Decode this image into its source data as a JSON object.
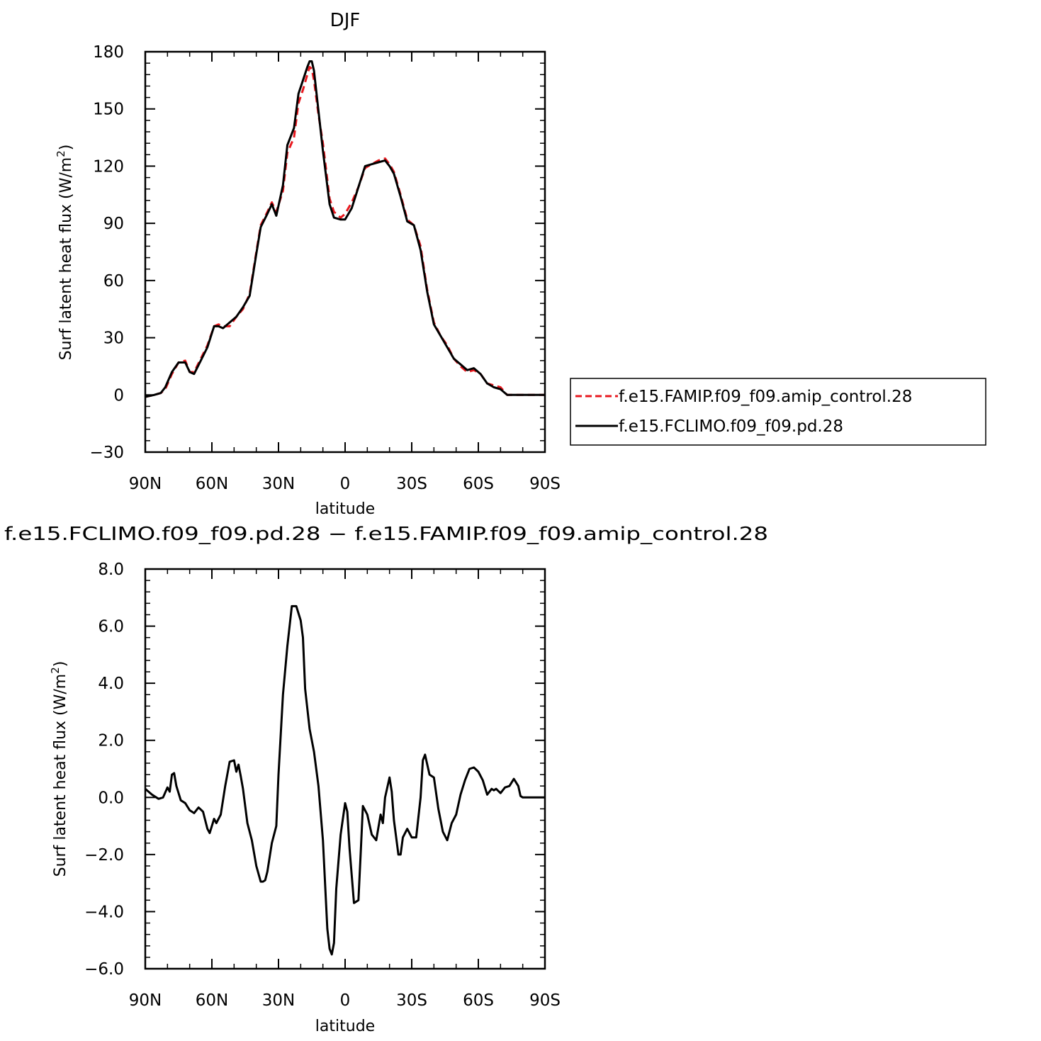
{
  "colors": {
    "amip": "#e8191f",
    "climo": "#000000",
    "axis": "#000000"
  },
  "chart_data": [
    {
      "type": "line",
      "title": "DJF",
      "xlabel": "latitude",
      "ylabel": "Surf latent heat flux (W/m",
      "ylabel_sup": "2",
      "ylabel_close": ")",
      "xlim": [
        90,
        -90
      ],
      "ylim": [
        -30,
        180
      ],
      "xticks": [
        90,
        60,
        30,
        0,
        -30,
        -60,
        -90
      ],
      "xtick_labels": [
        "90N",
        "60N",
        "30N",
        "0",
        "30S",
        "60S",
        "90S"
      ],
      "yticks": [
        -30,
        0,
        30,
        60,
        90,
        120,
        150,
        180
      ],
      "ytick_labels": [
        "−30",
        "0",
        "30",
        "60",
        "90",
        "120",
        "150",
        "180"
      ],
      "legend": {
        "placement": "right",
        "entries": [
          "f.e15.FAMIP.f09_f09.amip_control.28",
          "f.e15.FCLIMO.f09_f09.pd.28"
        ]
      },
      "series": [
        {
          "name": "f.e15.FAMIP.f09_f09.amip_control.28",
          "color": "#e8191f",
          "dash": "dashed",
          "x": [
            90,
            86,
            83,
            81,
            78,
            75,
            72,
            70,
            68,
            65,
            62,
            59,
            57,
            55,
            52,
            49,
            46,
            43,
            40,
            38,
            35,
            33,
            31,
            28,
            26,
            23,
            21,
            19,
            17,
            16,
            15,
            14,
            12,
            10,
            7,
            5,
            2,
            0,
            -3,
            -6,
            -9,
            -12,
            -15,
            -18,
            -20,
            -22,
            -25,
            -28,
            -31,
            -34,
            -37,
            -40,
            -43,
            -46,
            -49,
            -52,
            -55,
            -58,
            -61,
            -64,
            -67,
            -70,
            -73,
            -76,
            -78,
            -80,
            -84,
            -87,
            -90
          ],
          "values": [
            -1,
            0,
            1,
            3,
            11,
            17,
            18,
            12,
            12,
            19,
            26,
            36,
            37,
            36,
            36,
            41,
            45,
            53,
            75,
            89,
            96,
            101,
            96,
            107,
            127,
            135,
            153,
            160,
            168,
            172,
            171,
            165,
            147,
            132,
            103,
            96,
            93,
            95,
            101,
            109,
            119,
            121,
            123,
            124,
            121,
            117,
            105,
            92,
            89,
            78,
            55,
            38,
            31,
            26,
            19,
            15,
            12,
            13,
            11,
            6,
            5,
            4,
            0,
            0,
            0,
            0,
            0,
            0,
            0
          ]
        },
        {
          "name": "f.e15.FCLIMO.f09_f09.pd.28",
          "color": "#000000",
          "dash": "solid",
          "x": [
            90,
            86,
            83,
            81,
            78,
            75,
            72,
            70,
            68,
            65,
            62,
            59,
            57,
            55,
            52,
            49,
            46,
            43,
            40,
            38,
            35,
            33,
            31,
            28,
            26,
            23,
            21,
            19,
            17,
            16,
            15,
            14,
            12,
            10,
            7,
            5,
            2,
            0,
            -3,
            -6,
            -9,
            -12,
            -15,
            -18,
            -20,
            -22,
            -25,
            -28,
            -31,
            -34,
            -37,
            -40,
            -43,
            -46,
            -49,
            -52,
            -55,
            -58,
            -61,
            -64,
            -67,
            -70,
            -73,
            -76,
            -78,
            -80,
            -84,
            -87,
            -90
          ],
          "values": [
            -1,
            0,
            1,
            4,
            12,
            17,
            17,
            12,
            11,
            18,
            25,
            36,
            36,
            35,
            38,
            41,
            46,
            52,
            74,
            88,
            95,
            100,
            94,
            110,
            131,
            140,
            158,
            165,
            172,
            175,
            175,
            170,
            149,
            128,
            100,
            93,
            92,
            92,
            98,
            109,
            120,
            121,
            122,
            123,
            120,
            116,
            104,
            91,
            89,
            76,
            54,
            37,
            31,
            25,
            19,
            16,
            13,
            14,
            11,
            6,
            4,
            3,
            0,
            0,
            0,
            0,
            0,
            0,
            0
          ]
        }
      ]
    },
    {
      "type": "line",
      "title": "f.e15.FCLIMO.f09_f09.pd.28 − f.e15.FAMIP.f09_f09.amip_control.28",
      "xlabel": "latitude",
      "ylabel": "Surf latent heat flux (W/m",
      "ylabel_sup": "2",
      "ylabel_close": ")",
      "xlim": [
        90,
        -90
      ],
      "ylim": [
        -6,
        8
      ],
      "xticks": [
        90,
        60,
        30,
        0,
        -30,
        -60,
        -90
      ],
      "xtick_labels": [
        "90N",
        "60N",
        "30N",
        "0",
        "30S",
        "60S",
        "90S"
      ],
      "yticks": [
        -6,
        -4,
        -2,
        0,
        2,
        4,
        6,
        8
      ],
      "ytick_labels": [
        "−6.0",
        "−4.0",
        "−2.0",
        "0.0",
        "2.0",
        "4.0",
        "6.0",
        "8.0"
      ],
      "series": [
        {
          "color": "#000000",
          "dash": "solid",
          "x": [
            90,
            87,
            84,
            82,
            80,
            79,
            78,
            77,
            76,
            74,
            72,
            70,
            68,
            66,
            64,
            62,
            61,
            59,
            58,
            56,
            54,
            52,
            50,
            49,
            48,
            47,
            46,
            44,
            42,
            40,
            38,
            37,
            36,
            35,
            33,
            31,
            30,
            28,
            26,
            24,
            22,
            20,
            19,
            18,
            16,
            14,
            12,
            10,
            8,
            7,
            6,
            5,
            4,
            2,
            0,
            -1,
            -2,
            -4,
            -6,
            -7,
            -8,
            -10,
            -12,
            -14,
            -16,
            -17,
            -18,
            -20,
            -21,
            -22,
            -24,
            -25,
            -26,
            -28,
            -30,
            -32,
            -34,
            -35,
            -36,
            -38,
            -40,
            -42,
            -44,
            -46,
            -48,
            -50,
            -52,
            -54,
            -56,
            -58,
            -60,
            -62,
            -64,
            -66,
            -67,
            -68,
            -70,
            -72,
            -74,
            -76,
            -78,
            -79,
            -80,
            -84,
            -87,
            -90
          ],
          "values": [
            0.3,
            0.1,
            -0.05,
            0,
            0.35,
            0.2,
            0.8,
            0.85,
            0.4,
            -0.1,
            -0.2,
            -0.45,
            -0.55,
            -0.35,
            -0.5,
            -1.1,
            -1.25,
            -0.75,
            -0.9,
            -0.6,
            0.4,
            1.25,
            1.3,
            0.9,
            1.15,
            0.75,
            0.3,
            -0.9,
            -1.5,
            -2.4,
            -2.95,
            -2.95,
            -2.9,
            -2.6,
            -1.6,
            -1.0,
            0.8,
            3.6,
            5.3,
            6.7,
            6.7,
            6.2,
            5.6,
            3.8,
            2.4,
            1.6,
            0.4,
            -1.5,
            -4.6,
            -5.3,
            -5.5,
            -5.1,
            -3.2,
            -1.3,
            -0.2,
            -0.5,
            -1.8,
            -3.7,
            -3.6,
            -2.0,
            -0.3,
            -0.6,
            -1.3,
            -1.5,
            -0.6,
            -0.9,
            0.0,
            0.7,
            0.2,
            -0.8,
            -2.0,
            -2.0,
            -1.4,
            -1.1,
            -1.4,
            -1.4,
            0.0,
            1.3,
            1.5,
            0.8,
            0.7,
            -0.4,
            -1.2,
            -1.5,
            -0.9,
            -0.6,
            0.1,
            0.6,
            1.0,
            1.05,
            0.9,
            0.6,
            0.1,
            0.3,
            0.25,
            0.3,
            0.15,
            0.35,
            0.4,
            0.65,
            0.4,
            0.05,
            0.0,
            0.0,
            0.0,
            0.0
          ]
        }
      ]
    }
  ]
}
